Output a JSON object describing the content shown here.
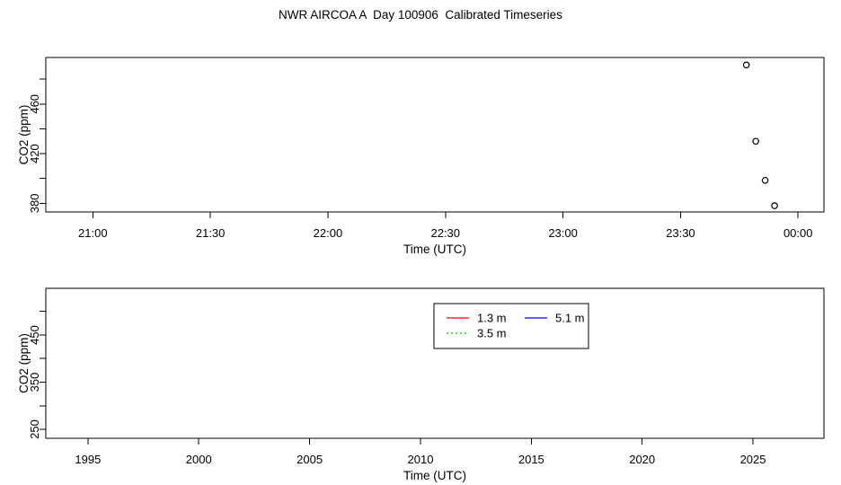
{
  "title": "NWR AIRCOA A  Day 100906  Calibrated Timeseries",
  "colors": {
    "foreground": "#000000",
    "background": "#FFFFFF",
    "level_1_3m": "#FF0000",
    "level_3_5m": "#00CC00",
    "level_5_1m": "#0000FF"
  },
  "chart_data": [
    {
      "type": "scatter",
      "panel": "top",
      "title": "",
      "xlabel": "Time (UTC)",
      "ylabel": "CO2 (ppm)",
      "x_unit": "hours UTC (decimal)",
      "xlim": [
        20.8,
        24.11
      ],
      "ylim": [
        373,
        497.5
      ],
      "grid": false,
      "marker": "open-circle",
      "xticks": [
        {
          "v": 21.0,
          "label": "21:00"
        },
        {
          "v": 21.5,
          "label": "21:30"
        },
        {
          "v": 22.0,
          "label": "22:00"
        },
        {
          "v": 22.5,
          "label": "22:30"
        },
        {
          "v": 23.0,
          "label": "23:00"
        },
        {
          "v": 23.5,
          "label": "23:30"
        },
        {
          "v": 24.0,
          "label": "00:00"
        }
      ],
      "yticks": [
        {
          "v": 380,
          "label": "380"
        },
        {
          "v": 400,
          "label": ""
        },
        {
          "v": 420,
          "label": "420"
        },
        {
          "v": 440,
          "label": ""
        },
        {
          "v": 460,
          "label": "460"
        },
        {
          "v": 480,
          "label": ""
        }
      ],
      "points": [
        {
          "x": 23.78,
          "y": 491.5,
          "time": "23:47"
        },
        {
          "x": 23.82,
          "y": 430.0,
          "time": "23:49"
        },
        {
          "x": 23.86,
          "y": 398.5,
          "time": "23:52"
        },
        {
          "x": 23.9,
          "y": 378.0,
          "time": "23:54"
        }
      ]
    },
    {
      "type": "line",
      "panel": "bottom",
      "title": "",
      "xlabel": "Time (UTC)",
      "ylabel": "CO2 (ppm)",
      "x_unit": "year",
      "xlim": [
        1993.1,
        2028.2
      ],
      "ylim": [
        231,
        549
      ],
      "grid": false,
      "xticks": [
        {
          "v": 1995,
          "label": "1995"
        },
        {
          "v": 2000,
          "label": "2000"
        },
        {
          "v": 2005,
          "label": "2005"
        },
        {
          "v": 2010,
          "label": "2010"
        },
        {
          "v": 2015,
          "label": "2015"
        },
        {
          "v": 2020,
          "label": "2020"
        },
        {
          "v": 2025,
          "label": "2025"
        }
      ],
      "yticks": [
        {
          "v": 250,
          "label": "250"
        },
        {
          "v": 300,
          "label": ""
        },
        {
          "v": 350,
          "label": "350"
        },
        {
          "v": 400,
          "label": ""
        },
        {
          "v": 450,
          "label": "450"
        },
        {
          "v": 500,
          "label": ""
        }
      ],
      "series": [],
      "legend": {
        "position": "top-center",
        "ncol": 2,
        "entries": [
          {
            "label": "1.3 m",
            "color": "#FF0000",
            "line_style": "solid"
          },
          {
            "label": "3.5 m",
            "color": "#00CC00",
            "line_style": "dotted"
          },
          {
            "label": "5.1 m",
            "color": "#0000FF",
            "line_style": "solid"
          }
        ]
      }
    }
  ]
}
